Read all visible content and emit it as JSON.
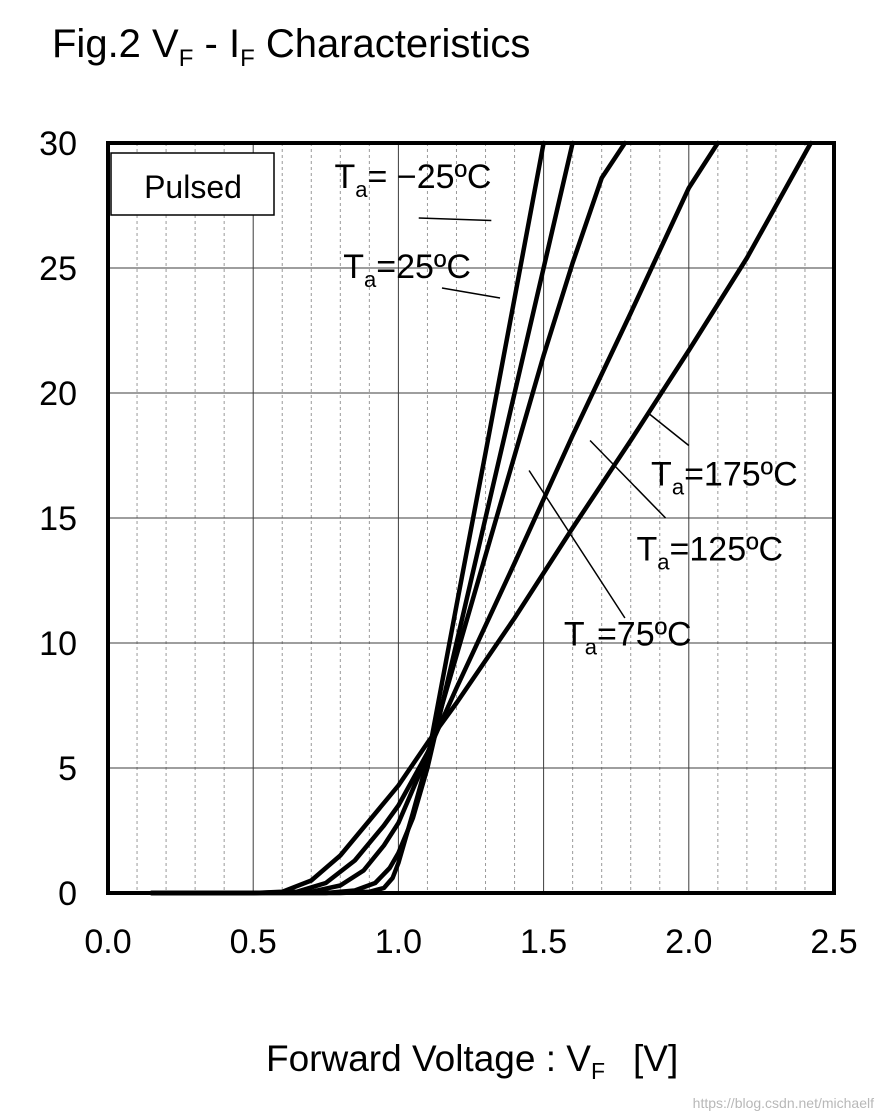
{
  "chart_data": {
    "type": "line",
    "title": {
      "prefix": "Fig.2 V",
      "sub1": "F",
      "mid": " - I",
      "sub2": "F",
      "suffix": " Characteristics"
    },
    "xlabel": {
      "prefix": "Forward Voltage : V",
      "sub": "F",
      "unit": "[V]"
    },
    "ylabel": "",
    "xlim": [
      0.0,
      2.5
    ],
    "ylim": [
      0,
      30
    ],
    "xticks": [
      0.0,
      0.5,
      1.0,
      1.5,
      2.0,
      2.5
    ],
    "xtick_labels": [
      "0.0",
      "0.5",
      "1.0",
      "1.5",
      "2.0",
      "2.5"
    ],
    "yticks": [
      0,
      5,
      10,
      15,
      20,
      25,
      30
    ],
    "ytick_labels": [
      "0",
      "5",
      "10",
      "15",
      "20",
      "25",
      "30"
    ],
    "grid": true,
    "box_label": "Pulsed",
    "series": [
      {
        "name": "Ta=-25°C",
        "label_sub": "a",
        "label_rest": "= −25ºC",
        "x": [
          0.15,
          0.5,
          0.8,
          0.9,
          0.95,
          0.98,
          1.0,
          1.02,
          1.05,
          1.1,
          1.2,
          1.3,
          1.4,
          1.5
        ],
        "y": [
          0,
          0,
          0,
          0.05,
          0.2,
          0.6,
          1.2,
          2.0,
          3.2,
          5.3,
          11.5,
          17.6,
          23.8,
          30
        ]
      },
      {
        "name": "Ta=25°C",
        "label_sub": "a",
        "label_rest": "=25ºC",
        "x": [
          0.15,
          0.5,
          0.75,
          0.85,
          0.92,
          0.97,
          1.0,
          1.05,
          1.1,
          1.2,
          1.3,
          1.4,
          1.5,
          1.6
        ],
        "y": [
          0,
          0,
          0,
          0.1,
          0.4,
          1.0,
          1.6,
          3.0,
          5.0,
          10.0,
          15.0,
          20.0,
          25.0,
          30
        ]
      },
      {
        "name": "Ta=75°C",
        "label_sub": "a",
        "label_rest": "=75ºC",
        "x": [
          0.15,
          0.5,
          0.7,
          0.8,
          0.88,
          0.95,
          1.0,
          1.1,
          1.2,
          1.3,
          1.4,
          1.5,
          1.6,
          1.7,
          1.78
        ],
        "y": [
          0,
          0,
          0.05,
          0.3,
          0.9,
          1.9,
          2.8,
          5.5,
          9.5,
          13.5,
          17.5,
          21.5,
          25.2,
          28.6,
          30
        ]
      },
      {
        "name": "Ta=125°C",
        "label_sub": "a",
        "label_rest": "=125ºC",
        "x": [
          0.15,
          0.5,
          0.65,
          0.75,
          0.85,
          0.95,
          1.0,
          1.1,
          1.2,
          1.4,
          1.6,
          1.8,
          2.0,
          2.1
        ],
        "y": [
          0,
          0,
          0.05,
          0.4,
          1.3,
          2.7,
          3.5,
          5.6,
          8.2,
          13.2,
          18.3,
          23.2,
          28.2,
          30
        ]
      },
      {
        "name": "Ta=175°C",
        "label_sub": "a",
        "label_rest": "=175ºC",
        "x": [
          0.15,
          0.5,
          0.6,
          0.7,
          0.8,
          0.9,
          1.0,
          1.1,
          1.2,
          1.4,
          1.6,
          1.8,
          2.0,
          2.2,
          2.42
        ],
        "y": [
          0,
          0,
          0.05,
          0.5,
          1.5,
          2.9,
          4.3,
          6.0,
          7.6,
          11.0,
          14.6,
          18.1,
          21.7,
          25.4,
          30
        ]
      }
    ],
    "annotations": [
      {
        "series_index": 0,
        "label_x": 0.78,
        "label_y": 28.2,
        "lx1": 1.07,
        "ly1": 27.0,
        "lx2": 1.32,
        "ly2": 26.9
      },
      {
        "series_index": 1,
        "label_x": 0.81,
        "label_y": 24.6,
        "lx1": 1.15,
        "ly1": 24.2,
        "lx2": 1.35,
        "ly2": 23.8
      },
      {
        "series_index": 4,
        "label_x": 1.87,
        "label_y": 16.3,
        "lx1": 1.86,
        "ly1": 19.2,
        "lx2": 2.0,
        "ly2": 17.9
      },
      {
        "series_index": 3,
        "label_x": 1.82,
        "label_y": 13.3,
        "lx1": 1.66,
        "ly1": 18.1,
        "lx2": 1.92,
        "ly2": 15.0
      },
      {
        "series_index": 2,
        "label_x": 1.57,
        "label_y": 9.9,
        "lx1": 1.45,
        "ly1": 16.9,
        "lx2": 1.78,
        "ly2": 11.0
      }
    ],
    "watermark": "https://blog.csdn.net/michaelf"
  }
}
